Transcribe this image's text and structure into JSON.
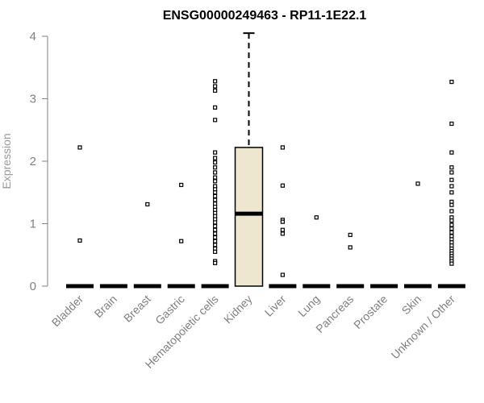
{
  "chart_data": {
    "type": "box",
    "title": "ENSG00000249463 - RP11-1E22.1",
    "ylabel": "Expression",
    "xlabel": "",
    "ylim": [
      0,
      4.1
    ],
    "yticks": [
      0,
      1,
      2,
      3,
      4
    ],
    "categories": [
      "Bladder",
      "Brain",
      "Breast",
      "Gastric",
      "Hematopoietic cells",
      "Kidney",
      "Liver",
      "Lung",
      "Pancreas",
      "Prostate",
      "Skin",
      "Unknown / Other"
    ],
    "box_fill": "#ede7cf",
    "boxes": [
      {
        "category": "Bladder",
        "q1": 0,
        "median": 0,
        "q3": 0,
        "whisker_low": 0,
        "whisker_high": 0,
        "outliers": [
          2.22,
          0.73
        ]
      },
      {
        "category": "Brain",
        "q1": 0,
        "median": 0,
        "q3": 0,
        "whisker_low": 0,
        "whisker_high": 0,
        "outliers": []
      },
      {
        "category": "Breast",
        "q1": 0,
        "median": 0,
        "q3": 0,
        "whisker_low": 0,
        "whisker_high": 0,
        "outliers": [
          1.31
        ]
      },
      {
        "category": "Gastric",
        "q1": 0,
        "median": 0,
        "q3": 0,
        "whisker_low": 0,
        "whisker_high": 0,
        "outliers": [
          1.62,
          0.72
        ]
      },
      {
        "category": "Hematopoietic cells",
        "q1": 0,
        "median": 0,
        "q3": 0,
        "whisker_low": 0,
        "whisker_high": 0,
        "outliers": [
          3.28,
          3.2,
          3.13,
          2.86,
          2.66,
          2.14,
          2.05,
          1.98,
          1.9,
          1.82,
          1.74,
          1.68,
          1.6,
          1.55,
          1.5,
          1.44,
          1.38,
          1.32,
          1.27,
          1.22,
          1.17,
          1.12,
          1.07,
          1.02,
          0.96,
          0.9,
          0.84,
          0.78,
          0.72,
          0.66,
          0.6,
          0.55,
          0.4,
          0.37
        ]
      },
      {
        "category": "Kidney",
        "q1": 0,
        "median": 1.16,
        "q3": 2.22,
        "whisker_low": 0,
        "whisker_high": 4.05,
        "outliers": []
      },
      {
        "category": "Liver",
        "q1": 0,
        "median": 0,
        "q3": 0,
        "whisker_low": 0,
        "whisker_high": 0,
        "outliers": [
          2.22,
          1.61,
          1.06,
          1.03,
          0.9,
          0.84,
          0.18
        ]
      },
      {
        "category": "Lung",
        "q1": 0,
        "median": 0,
        "q3": 0,
        "whisker_low": 0,
        "whisker_high": 0,
        "outliers": [
          1.1
        ]
      },
      {
        "category": "Pancreas",
        "q1": 0,
        "median": 0,
        "q3": 0,
        "whisker_low": 0,
        "whisker_high": 0,
        "outliers": [
          0.82,
          0.62
        ]
      },
      {
        "category": "Prostate",
        "q1": 0,
        "median": 0,
        "q3": 0,
        "whisker_low": 0,
        "whisker_high": 0,
        "outliers": []
      },
      {
        "category": "Skin",
        "q1": 0,
        "median": 0,
        "q3": 0,
        "whisker_low": 0,
        "whisker_high": 0,
        "outliers": [
          1.64
        ]
      },
      {
        "category": "Unknown / Other",
        "q1": 0,
        "median": 0,
        "q3": 0,
        "whisker_low": 0,
        "whisker_high": 0,
        "outliers": [
          3.27,
          2.6,
          2.14,
          1.9,
          1.82,
          1.7,
          1.6,
          1.5,
          1.35,
          1.3,
          1.2,
          1.1,
          1.05,
          0.98,
          0.92,
          0.86,
          0.8,
          0.75,
          0.7,
          0.65,
          0.6,
          0.56,
          0.52,
          0.48,
          0.44,
          0.4,
          0.36
        ]
      }
    ]
  }
}
